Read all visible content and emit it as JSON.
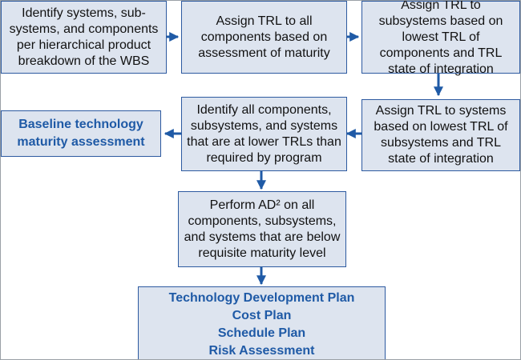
{
  "colors": {
    "box_fill": "#dde4ef",
    "box_border": "#2d5aa0",
    "arrow": "#1f5aa6",
    "bold_text": "#1f5aa6"
  },
  "boxes": {
    "identify_systems": "Identify systems, sub-systems, and components per hierarchical product breakdown of the WBS",
    "assign_trl_components": "Assign TRL to all components based on assessment of maturity",
    "assign_trl_subsystems": "Assign TRL to subsystems based on lowest TRL of components and TRL state of integration",
    "assign_trl_systems": "Assign TRL to systems based on lowest TRL of subsystems and TRL state of integration",
    "identify_lower_trl": "Identify all components, subsystems, and systems that are at lower TRLs than required by program",
    "baseline_assessment": "Baseline technology maturity assessment",
    "perform_ad2": "Perform AD² on all components, subsystems, and systems that are below requisite maturity level",
    "outputs": [
      "Technology Development Plan",
      "Cost Plan",
      "Schedule Plan",
      "Risk Assessment"
    ]
  }
}
